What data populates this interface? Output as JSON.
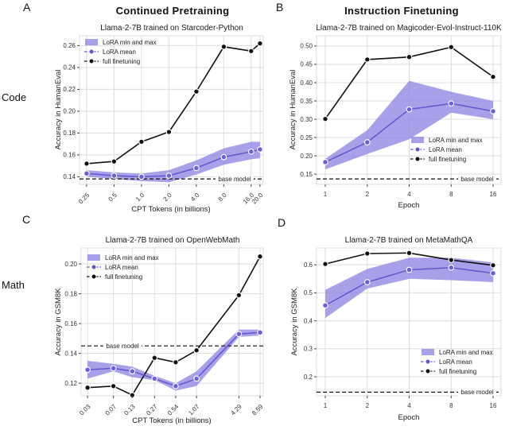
{
  "figure": {
    "panel_labels": {
      "a": "A",
      "b": "B",
      "c": "C",
      "d": "D"
    },
    "row_labels": {
      "code": "Code",
      "math": "Math"
    },
    "column_titles": {
      "left": "Continued Pretraining",
      "right": "Instruction Finetuning"
    }
  },
  "legend": {
    "band": "LoRA min and max",
    "mean": "LoRA mean",
    "full": "full finetuning"
  },
  "base_model_label": "base model",
  "colors": {
    "lora_band": "#9288e2",
    "lora_line": "#6456ce",
    "lora_marker": "#6f5ed8",
    "full_finetuning": "#111111",
    "grid": "#dcdcdc",
    "base_line": "#111111",
    "text": "#222222"
  },
  "chart_data": [
    {
      "id": "A",
      "type": "line",
      "title": "Continued Pretraining",
      "subtitle": "Llama-2-7B trained on Starcoder-Python",
      "xlabel": "CPT Tokens (in billions)",
      "ylabel": "Accuracy in HumanEval",
      "x_scale": "log",
      "x": [
        0.25,
        0.5,
        1.0,
        2.0,
        4.0,
        8.0,
        16.0,
        20.0
      ],
      "x_tick_labels": [
        "0.25",
        "0.5",
        "1.0",
        "2.0",
        "4.0",
        "8.0",
        "16.0",
        "20.0"
      ],
      "xlim": [
        0.209,
        21.7
      ],
      "y_ticks": [
        0.14,
        0.16,
        0.18,
        0.2,
        0.22,
        0.24,
        0.26
      ],
      "y_tick_labels": [
        "0.14",
        "0.16",
        "0.18",
        "0.20",
        "0.22",
        "0.24",
        "0.26"
      ],
      "ylim": [
        0.133,
        0.269
      ],
      "grid": true,
      "series": {
        "full_finetuning": [
          0.152,
          0.154,
          0.172,
          0.181,
          0.218,
          0.259,
          0.255,
          0.262
        ],
        "lora_mean": [
          0.143,
          0.141,
          0.14,
          0.141,
          0.148,
          0.158,
          0.163,
          0.165
        ],
        "lora_min": [
          0.14,
          0.138,
          0.136,
          0.135,
          0.142,
          0.151,
          0.156,
          0.157
        ],
        "lora_max": [
          0.146,
          0.144,
          0.143,
          0.146,
          0.155,
          0.166,
          0.172,
          0.172
        ]
      },
      "base_model": 0.138,
      "legend_position": "top-left",
      "base_label_side": "right"
    },
    {
      "id": "B",
      "type": "line",
      "title": "Instruction Finetuning",
      "subtitle": "Llama-2-7B trained on Magicoder-Evol-Instruct-110K",
      "xlabel": "Epoch",
      "ylabel": "Accuracy in HumanEval",
      "x_scale": "log",
      "x": [
        1,
        2,
        4,
        8,
        16
      ],
      "x_tick_labels": [
        "1",
        "2",
        "4",
        "8",
        "16"
      ],
      "xlim": [
        0.865,
        18.25
      ],
      "y_ticks": [
        0.15,
        0.2,
        0.25,
        0.3,
        0.35,
        0.4,
        0.45,
        0.5
      ],
      "y_tick_labels": [
        "0.15",
        "0.20",
        "0.25",
        "0.30",
        "0.35",
        "0.40",
        "0.45",
        "0.50"
      ],
      "ylim": [
        0.122,
        0.528
      ],
      "grid": true,
      "series": {
        "full_finetuning": [
          0.301,
          0.463,
          0.47,
          0.497,
          0.416
        ],
        "lora_mean": [
          0.183,
          0.237,
          0.327,
          0.343,
          0.322
        ],
        "lora_min": [
          0.163,
          0.205,
          0.245,
          0.318,
          0.3
        ],
        "lora_max": [
          0.192,
          0.27,
          0.405,
          0.375,
          0.35
        ]
      },
      "base_model": 0.137,
      "legend_position": "right-middle",
      "base_label_side": "right"
    },
    {
      "id": "C",
      "type": "line",
      "title": "",
      "subtitle": "Llama-2-7B trained on OpenWebMath",
      "xlabel": "CPT Tokens (in billions)",
      "ylabel": "Accuracy in GSM8K",
      "x_scale": "log",
      "x": [
        0.03,
        0.07,
        0.13,
        0.27,
        0.54,
        1.07,
        4.29,
        8.59
      ],
      "x_tick_labels": [
        "0.03",
        "0.07",
        "0.13",
        "0.27",
        "0.54",
        "1.07",
        "4.29",
        "8.59"
      ],
      "xlim": [
        0.0243,
        9.53
      ],
      "y_ticks": [
        0.12,
        0.14,
        0.16,
        0.18,
        0.2
      ],
      "y_tick_labels": [
        "0.12",
        "0.14",
        "0.16",
        "0.18",
        "0.20"
      ],
      "ylim": [
        0.1115,
        0.2107
      ],
      "grid": true,
      "series": {
        "full_finetuning": [
          0.117,
          0.118,
          0.112,
          0.137,
          0.134,
          0.142,
          0.179,
          0.205
        ],
        "lora_mean": [
          0.129,
          0.13,
          0.128,
          0.123,
          0.118,
          0.123,
          0.153,
          0.154
        ],
        "lora_min": [
          0.123,
          0.128,
          0.124,
          0.122,
          0.115,
          0.118,
          0.151,
          0.152
        ],
        "lora_max": [
          0.135,
          0.133,
          0.131,
          0.125,
          0.12,
          0.128,
          0.156,
          0.156
        ]
      },
      "base_model": 0.145,
      "legend_position": "top-left",
      "base_label_side": "left"
    },
    {
      "id": "D",
      "type": "line",
      "title": "",
      "subtitle": "Llama-2-7B trained on MetaMathQA",
      "xlabel": "Epoch",
      "ylabel": "Accuracy in GSM8K",
      "x_scale": "log",
      "x": [
        1,
        2,
        4,
        8,
        16
      ],
      "x_tick_labels": [
        "1",
        "2",
        "4",
        "8",
        "16"
      ],
      "xlim": [
        0.865,
        18.25
      ],
      "y_ticks": [
        0.2,
        0.3,
        0.4,
        0.5,
        0.6
      ],
      "y_tick_labels": [
        "0.2",
        "0.3",
        "0.4",
        "0.5",
        "0.6"
      ],
      "ylim": [
        0.132,
        0.66
      ],
      "grid": true,
      "series": {
        "full_finetuning": [
          0.603,
          0.64,
          0.642,
          0.617,
          0.598
        ],
        "lora_mean": [
          0.455,
          0.538,
          0.582,
          0.59,
          0.57
        ],
        "lora_min": [
          0.41,
          0.515,
          0.55,
          0.545,
          0.538
        ],
        "lora_max": [
          0.51,
          0.585,
          0.625,
          0.625,
          0.608
        ]
      },
      "base_model": 0.145,
      "legend_position": "right-middle",
      "base_label_side": "right"
    }
  ]
}
